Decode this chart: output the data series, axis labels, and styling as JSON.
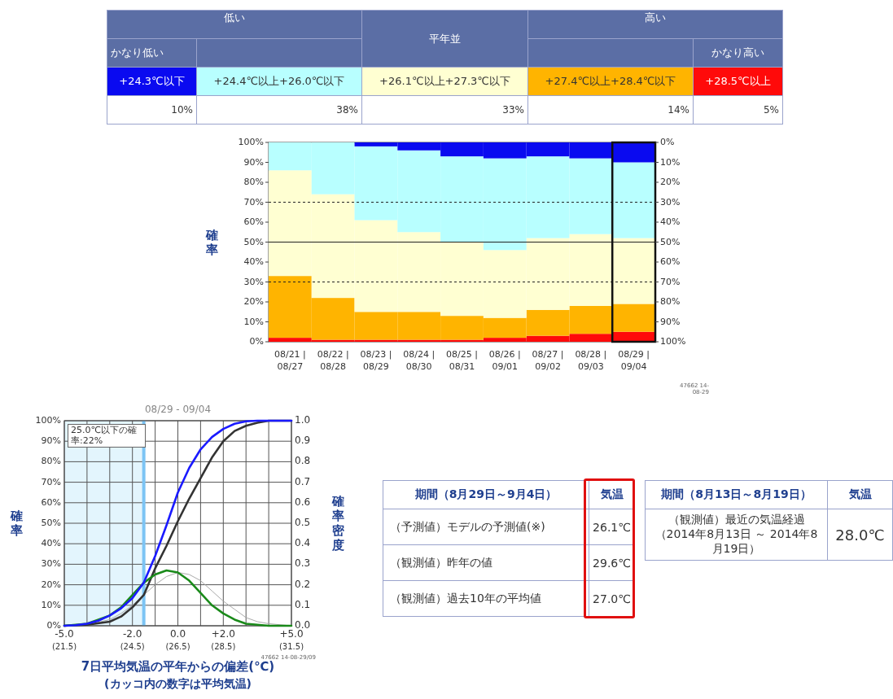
{
  "chart_data": [
    {
      "type": "other",
      "annotations": [
        "低い",
        "平年並",
        "高い",
        "かなり低い",
        "かなり高い"
      ],
      "categories": [
        "+24.3℃以下",
        "+24.4℃以上+26.0℃以下",
        "+26.1℃以上+27.3℃以下",
        "+27.4℃以上+28.4℃以下",
        "+28.5℃以上"
      ],
      "colors": [
        "#0a0af0",
        "#b8ffff",
        "#ffffd2",
        "#ffb400",
        "#ff0a0a"
      ],
      "values": [
        10,
        38,
        33,
        14,
        5
      ],
      "value_labels": [
        "10%",
        "38%",
        "33%",
        "14%",
        "5%"
      ]
    },
    {
      "type": "bar",
      "stacked": true,
      "ylabel": "確率",
      "categories": [
        "08/21 | 08/27",
        "08/22 | 08/28",
        "08/23 | 08/29",
        "08/24 | 08/30",
        "08/25 | 08/31",
        "08/26 | 09/01",
        "08/27 | 09/02",
        "08/28 | 09/03",
        "08/29 | 09/04"
      ],
      "series": [
        {
          "color": "#ff0a0a",
          "values": [
            2,
            1,
            1,
            1,
            1,
            2,
            3,
            4,
            5
          ]
        },
        {
          "color": "#ffb400",
          "values": [
            31,
            21,
            14,
            14,
            12,
            10,
            13,
            14,
            14
          ]
        },
        {
          "color": "#ffffd2",
          "values": [
            53,
            52,
            46,
            40,
            37,
            34,
            36,
            36,
            33
          ]
        },
        {
          "color": "#b8ffff",
          "values": [
            14,
            26,
            37,
            41,
            43,
            46,
            41,
            38,
            38
          ]
        },
        {
          "color": "#0a0af0",
          "values": [
            0,
            0,
            2,
            4,
            7,
            8,
            7,
            8,
            10
          ]
        }
      ],
      "ylim": [
        0,
        100
      ],
      "yticks": [
        {
          "value": 0,
          "label": "0%"
        },
        {
          "value": 10,
          "label": "10%"
        },
        {
          "value": 20,
          "label": "20%"
        },
        {
          "value": 30,
          "label": "30%"
        },
        {
          "value": 40,
          "label": "40%"
        },
        {
          "value": 50,
          "label": "50%"
        },
        {
          "value": 60,
          "label": "60%"
        },
        {
          "value": 70,
          "label": "70%"
        },
        {
          "value": 80,
          "label": "80%"
        },
        {
          "value": 90,
          "label": "90%"
        },
        {
          "value": 100,
          "label": "100%"
        }
      ],
      "y2lim": [
        100,
        0
      ],
      "y2ticks": [
        {
          "value": 100,
          "label": "100%"
        },
        {
          "value": 90,
          "label": "90%"
        },
        {
          "value": 80,
          "label": "80%"
        },
        {
          "value": 70,
          "label": "70%"
        },
        {
          "value": 60,
          "label": "60%"
        },
        {
          "value": 50,
          "label": "50%"
        },
        {
          "value": 40,
          "label": "40%"
        },
        {
          "value": 30,
          "label": "30%"
        },
        {
          "value": 20,
          "label": "20%"
        },
        {
          "value": 10,
          "label": "10%"
        },
        {
          "value": 0,
          "label": "0%"
        }
      ],
      "ref_lines": [
        {
          "axis": "y",
          "value": 30,
          "line_style": "dashed"
        },
        {
          "axis": "y",
          "value": 70,
          "line_style": "dashed"
        },
        {
          "axis": "y",
          "value": 50,
          "line_style": "solid"
        }
      ],
      "annotations": [
        "47662 14-08-29"
      ]
    },
    {
      "type": "line",
      "title": "08/29 - 09/04",
      "xlabel": "7日平均気温の平年からの偏差(℃)",
      "ylabel": "確率",
      "y2label": "確率密度",
      "grid": true,
      "xlim": [
        -5,
        5
      ],
      "xticks": [
        {
          "value": -5,
          "label": "-5.0"
        },
        {
          "value": -4,
          "label": null
        },
        {
          "value": -3,
          "label": null
        },
        {
          "value": -2,
          "label": "-2.0"
        },
        {
          "value": -1,
          "label": null
        },
        {
          "value": 0,
          "label": "0.0"
        },
        {
          "value": 1,
          "label": null
        },
        {
          "value": 2,
          "label": "+2.0"
        },
        {
          "value": 3,
          "label": null
        },
        {
          "value": 4,
          "label": null
        },
        {
          "value": 5,
          "label": "+5.0"
        }
      ],
      "x2lim": [
        21.5,
        31.5
      ],
      "x2ticks": [
        {
          "value": 21.5,
          "label": "(21.5)"
        },
        {
          "value": 24.5,
          "label": "(24.5)"
        },
        {
          "value": 26.5,
          "label": "(26.5)"
        },
        {
          "value": 28.5,
          "label": "(28.5)"
        },
        {
          "value": 31.5,
          "label": "(31.5)"
        }
      ],
      "ylim": [
        0,
        100
      ],
      "yticks": [
        {
          "value": 0,
          "label": "0%"
        },
        {
          "value": 10,
          "label": "10%"
        },
        {
          "value": 20,
          "label": "20%"
        },
        {
          "value": 30,
          "label": "30%"
        },
        {
          "value": 40,
          "label": "40%"
        },
        {
          "value": 50,
          "label": "50%"
        },
        {
          "value": 60,
          "label": "60%"
        },
        {
          "value": 70,
          "label": "70%"
        },
        {
          "value": 80,
          "label": "80%"
        },
        {
          "value": 90,
          "label": "90%"
        },
        {
          "value": 100,
          "label": "100%"
        }
      ],
      "y2lim": [
        0,
        1
      ],
      "y2ticks": [
        {
          "value": 0,
          "label": "0.0"
        },
        {
          "value": 0.1,
          "label": "0.1"
        },
        {
          "value": 0.2,
          "label": "0.2"
        },
        {
          "value": 0.3,
          "label": "0.3"
        },
        {
          "value": 0.4,
          "label": "0.4"
        },
        {
          "value": 0.5,
          "label": "0.5"
        },
        {
          "value": 0.6,
          "label": "0.6"
        },
        {
          "value": 0.7,
          "label": "0.7"
        },
        {
          "value": 0.8,
          "label": "0.8"
        },
        {
          "value": 0.9,
          "label": "0.9"
        },
        {
          "value": 1,
          "label": "1.0"
        }
      ],
      "bands": [
        {
          "axis": "x",
          "from": -5,
          "to": -1.5,
          "color": "#e3f5fd"
        }
      ],
      "ref_lines": [
        {
          "axis": "x",
          "value": -1.5,
          "color": "#7cc4f4"
        }
      ],
      "series": [
        {
          "color": "#aaaaaa",
          "axis": "y2",
          "x": [
            -5,
            -4,
            -3,
            -2.5,
            -2,
            -1.5,
            -1,
            -0.5,
            0,
            0.5,
            1,
            1.5,
            2,
            2.5,
            3,
            3.5,
            4,
            5
          ],
          "values": [
            0,
            0.005,
            0.03,
            0.06,
            0.1,
            0.15,
            0.2,
            0.24,
            0.26,
            0.25,
            0.22,
            0.17,
            0.12,
            0.08,
            0.04,
            0.02,
            0.01,
            0
          ]
        },
        {
          "color": "#333333",
          "x": [
            -5,
            -4,
            -3,
            -2.5,
            -2,
            -1.5,
            -1,
            -0.5,
            0,
            0.5,
            1,
            1.5,
            2,
            2.5,
            3,
            3.5,
            4,
            5
          ],
          "values": [
            0,
            0.5,
            2,
            4.5,
            9,
            15,
            28,
            39,
            51,
            62,
            72,
            82,
            90,
            95,
            97.5,
            99,
            100,
            100
          ]
        },
        {
          "color": "#1a8a1a",
          "axis": "y2",
          "x": [
            -5,
            -4,
            -3,
            -2.5,
            -2,
            -1.5,
            -1,
            -0.5,
            0,
            0.5,
            1,
            1.5,
            2,
            2.5,
            3,
            4,
            5
          ],
          "values": [
            0,
            0.01,
            0.05,
            0.09,
            0.15,
            0.21,
            0.25,
            0.27,
            0.26,
            0.22,
            0.16,
            0.1,
            0.06,
            0.03,
            0.01,
            0,
            0
          ]
        },
        {
          "color": "#1a1aff",
          "x": [
            -5,
            -4.5,
            -4,
            -3.5,
            -3,
            -2.5,
            -2,
            -1.5,
            -1,
            -0.5,
            0,
            0.5,
            1,
            1.5,
            2,
            2.5,
            3,
            3.5,
            4,
            5
          ],
          "values": [
            0,
            0.3,
            1,
            2.5,
            5,
            8.5,
            13.5,
            21,
            34,
            49,
            65,
            77,
            86,
            92,
            96,
            98.5,
            99.7,
            100,
            100,
            100
          ]
        }
      ],
      "annotations": [
        "25.0℃以下の確率:22%",
        "(カッコ内の数字は平均気温)",
        "47662 14-08-29/09"
      ]
    },
    {
      "type": "other",
      "title": "期間（8月29日～9月4日）",
      "annotations": [
        "気温"
      ],
      "categories": [
        "（予測値）モデルの予測値(※)",
        "（観測値）昨年の値",
        "（観測値）過去10年の平均値"
      ],
      "values": [
        26.1,
        29.6,
        27.0
      ],
      "value_labels": [
        "26.1℃",
        "29.6℃",
        "27.0℃"
      ]
    },
    {
      "type": "other",
      "title": "期間（8月13日～8月19日）",
      "annotations": [
        "気温"
      ],
      "categories": [
        "（観測値）最近の気温経過（2014年8月13日 ～ 2014年8月19日）"
      ],
      "values": [
        28.0
      ],
      "value_labels": [
        "28.0℃"
      ]
    }
  ]
}
